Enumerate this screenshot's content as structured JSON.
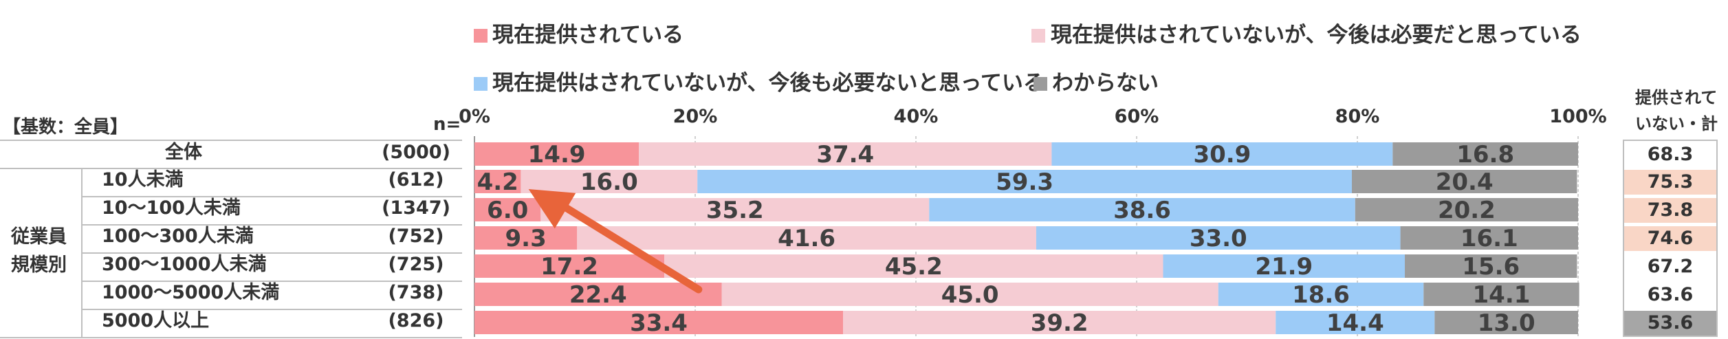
{
  "legend": [
    {
      "label": "現在提供されている",
      "color": "#f7949a"
    },
    {
      "label": "現在提供はされていないが、今後は必要だと思っている",
      "color": "#f5ccd3"
    },
    {
      "label": "現在提供はされていないが、今後も必要ないと思っている",
      "color": "#9ccbf7"
    },
    {
      "label": "わからない",
      "color": "#9b9b9b"
    }
  ],
  "header": {
    "base": "【基数：全員】",
    "n": "n=",
    "total_header": [
      "提供されて",
      "いない・計"
    ]
  },
  "group_label": [
    "従業員",
    "規模別"
  ],
  "chart_data": {
    "type": "bar",
    "orientation": "horizontal-stacked-100",
    "xlim": [
      0,
      100
    ],
    "x_ticks": [
      "0%",
      "20%",
      "40%",
      "60%",
      "80%",
      "100%"
    ],
    "categories": [
      "全体",
      "10人未満",
      "10～100人未満",
      "100～300人未満",
      "300～1000人未満",
      "1000～5000人未満",
      "5000人以上"
    ],
    "n": [
      "(5000)",
      "(612)",
      "(1347)",
      "(752)",
      "(725)",
      "(738)",
      "(826)"
    ],
    "series": [
      {
        "name": "現在提供されている",
        "values": [
          14.9,
          4.2,
          6.0,
          9.3,
          17.2,
          22.4,
          33.4
        ]
      },
      {
        "name": "現在提供はされていないが、今後は必要だと思っている",
        "values": [
          37.4,
          16.0,
          35.2,
          41.6,
          45.2,
          45.0,
          39.2
        ]
      },
      {
        "name": "現在提供はされていないが、今後も必要ないと思っている",
        "values": [
          30.9,
          59.3,
          38.6,
          33.0,
          21.9,
          18.6,
          14.4
        ]
      },
      {
        "name": "わからない",
        "values": [
          16.8,
          20.4,
          20.2,
          16.1,
          15.6,
          14.1,
          13.0
        ]
      }
    ],
    "not_provided_total": [
      68.3,
      75.3,
      73.8,
      74.6,
      67.2,
      63.6,
      53.6
    ],
    "total_highlight": [
      "none",
      "high",
      "high",
      "high",
      "none",
      "none",
      "low"
    ],
    "highlight_colors": {
      "high": "#f9d6c6",
      "low": "#a6a6a6",
      "none": "#ffffff"
    },
    "annotation": {
      "type": "arrow",
      "color": "#e8643a",
      "from_row": "1000～5000人未満",
      "to_row": "10人未満"
    }
  }
}
